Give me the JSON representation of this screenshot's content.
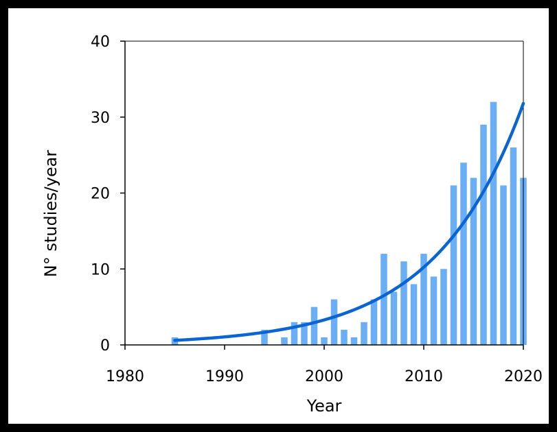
{
  "chart_data": {
    "type": "bar",
    "xlabel": "Year",
    "ylabel": "N° studies/year",
    "xlim": [
      1980,
      2020
    ],
    "ylim": [
      0,
      40
    ],
    "x_ticks": [
      "1980",
      "1990",
      "2000",
      "2010",
      "2020"
    ],
    "y_ticks": [
      "0",
      "10",
      "20",
      "30",
      "40"
    ],
    "colors": {
      "bars": "#6aaef5",
      "trend": "#0a64d2",
      "axis": "#000000"
    },
    "grid": false,
    "bars": [
      {
        "year": 1985,
        "value": 1
      },
      {
        "year": 1994,
        "value": 2
      },
      {
        "year": 1996,
        "value": 1
      },
      {
        "year": 1997,
        "value": 3
      },
      {
        "year": 1998,
        "value": 3
      },
      {
        "year": 1999,
        "value": 5
      },
      {
        "year": 2000,
        "value": 1
      },
      {
        "year": 2001,
        "value": 6
      },
      {
        "year": 2002,
        "value": 2
      },
      {
        "year": 2003,
        "value": 1
      },
      {
        "year": 2004,
        "value": 3
      },
      {
        "year": 2005,
        "value": 6
      },
      {
        "year": 2006,
        "value": 12
      },
      {
        "year": 2007,
        "value": 7
      },
      {
        "year": 2008,
        "value": 11
      },
      {
        "year": 2009,
        "value": 8
      },
      {
        "year": 2010,
        "value": 12
      },
      {
        "year": 2011,
        "value": 9
      },
      {
        "year": 2012,
        "value": 10
      },
      {
        "year": 2013,
        "value": 21
      },
      {
        "year": 2014,
        "value": 24
      },
      {
        "year": 2015,
        "value": 22
      },
      {
        "year": 2016,
        "value": 29
      },
      {
        "year": 2017,
        "value": 32
      },
      {
        "year": 2018,
        "value": 21
      },
      {
        "year": 2019,
        "value": 26
      },
      {
        "year": 2020,
        "value": 22
      }
    ],
    "trend_line": {
      "type": "exponential",
      "points": [
        {
          "year": 1985,
          "value": 0.6
        },
        {
          "year": 1990,
          "value": 0.9
        },
        {
          "year": 1995,
          "value": 1.6
        },
        {
          "year": 2000,
          "value": 3.0
        },
        {
          "year": 2005,
          "value": 5.4
        },
        {
          "year": 2010,
          "value": 9.8
        },
        {
          "year": 2015,
          "value": 17.6
        },
        {
          "year": 2020,
          "value": 31.8
        }
      ]
    }
  }
}
